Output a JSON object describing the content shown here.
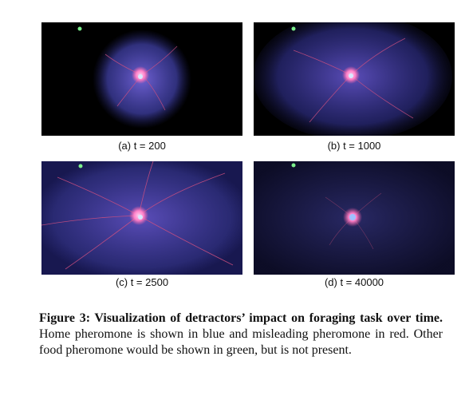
{
  "panels": [
    {
      "caption": "(a) t = 200"
    },
    {
      "caption": "(b) t = 1000"
    },
    {
      "caption": "(c) t = 2500"
    },
    {
      "caption": "(d) t = 40000"
    }
  ],
  "figure": {
    "label": "Figure 3: Visualization of detractors’ impact on foraging task over time.",
    "text": " Home pheromone is shown in blue and misleading pheromone in red. Other food pheromone would be shown in green, but is not present."
  },
  "colors": {
    "home_pheromone": "#5a5ad8",
    "misleading_pheromone": "#e0506a",
    "food_marker": "#7cf08c",
    "nest": "#ff9ad8"
  }
}
